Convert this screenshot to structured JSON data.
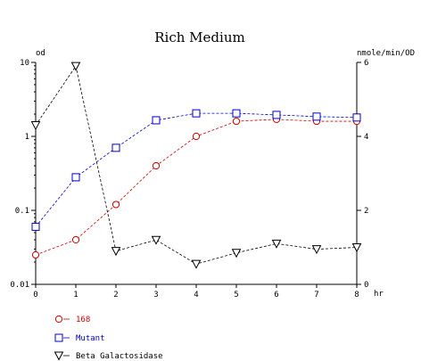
{
  "chart_data": {
    "type": "line",
    "title": "Rich Medium",
    "xlabel": "hr",
    "ylabel_left": "od",
    "ylabel_right": "nmole/min/OD",
    "x": [
      0,
      1,
      2,
      3,
      4,
      5,
      6,
      7,
      8
    ],
    "xlim": [
      0,
      8
    ],
    "x_ticks": [
      "0",
      "1",
      "2",
      "3",
      "4",
      "5",
      "6",
      "7",
      "8"
    ],
    "y_left": {
      "scale": "log",
      "lim": [
        0.01,
        10
      ],
      "ticks": [
        "0.01",
        "0.1",
        "1",
        "10"
      ]
    },
    "y_right": {
      "scale": "linear",
      "lim": [
        0,
        6
      ],
      "ticks": [
        "0",
        "2",
        "4",
        "6"
      ]
    },
    "grid": false,
    "legend_position": "bottom-left",
    "series": [
      {
        "name": "168",
        "axis": "left",
        "marker": "circle",
        "color": "#cc0000",
        "line": "dashed",
        "values": [
          0.025,
          0.04,
          0.12,
          0.4,
          1.0,
          1.6,
          1.7,
          1.6,
          1.6
        ]
      },
      {
        "name": "Mutant",
        "axis": "left",
        "marker": "square",
        "color": "#0000cc",
        "line": "dashed",
        "values": [
          0.06,
          0.28,
          0.7,
          1.65,
          2.05,
          2.05,
          1.95,
          1.85,
          1.8
        ]
      },
      {
        "name": "Beta Galactosidase",
        "axis": "right",
        "marker": "triangle-down",
        "color": "#000000",
        "line": "dashed",
        "values": [
          4.3,
          5.9,
          0.9,
          1.2,
          0.55,
          0.85,
          1.1,
          0.95,
          1.0
        ]
      }
    ]
  }
}
